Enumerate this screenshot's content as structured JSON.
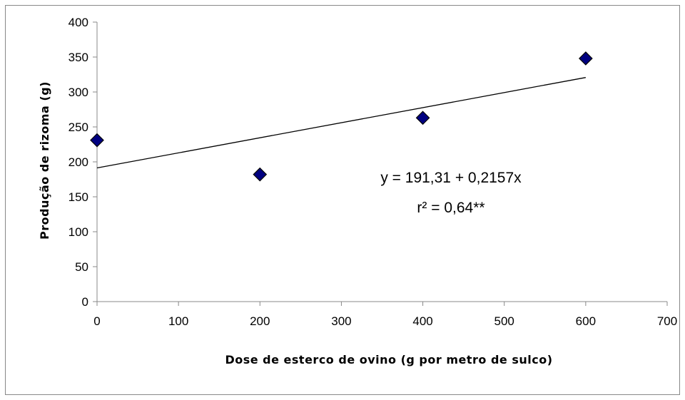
{
  "chart_data": {
    "type": "scatter",
    "xlabel": "Dose de esterco de ovino (g por metro de sulco)",
    "ylabel": "Produção de rizoma (g)",
    "xlim": [
      0,
      700
    ],
    "ylim": [
      0,
      400
    ],
    "x_ticks": [
      0,
      100,
      200,
      300,
      400,
      500,
      600,
      700
    ],
    "y_ticks": [
      0,
      50,
      100,
      150,
      200,
      250,
      300,
      350,
      400
    ],
    "grid": false,
    "legend": "none",
    "series": [
      {
        "marker": "diamond",
        "color": "#000080",
        "points": [
          {
            "x": 0,
            "y": 231
          },
          {
            "x": 200,
            "y": 182
          },
          {
            "x": 400,
            "y": 263
          },
          {
            "x": 600,
            "y": 348
          }
        ]
      }
    ],
    "trendline": {
      "type": "linear",
      "intercept": 191.31,
      "slope": 0.2157,
      "x_range": [
        0,
        600
      ],
      "color": "#000000"
    },
    "annotations": [
      "y = 191,31 + 0,2157x",
      "r² = 0,64**"
    ]
  }
}
